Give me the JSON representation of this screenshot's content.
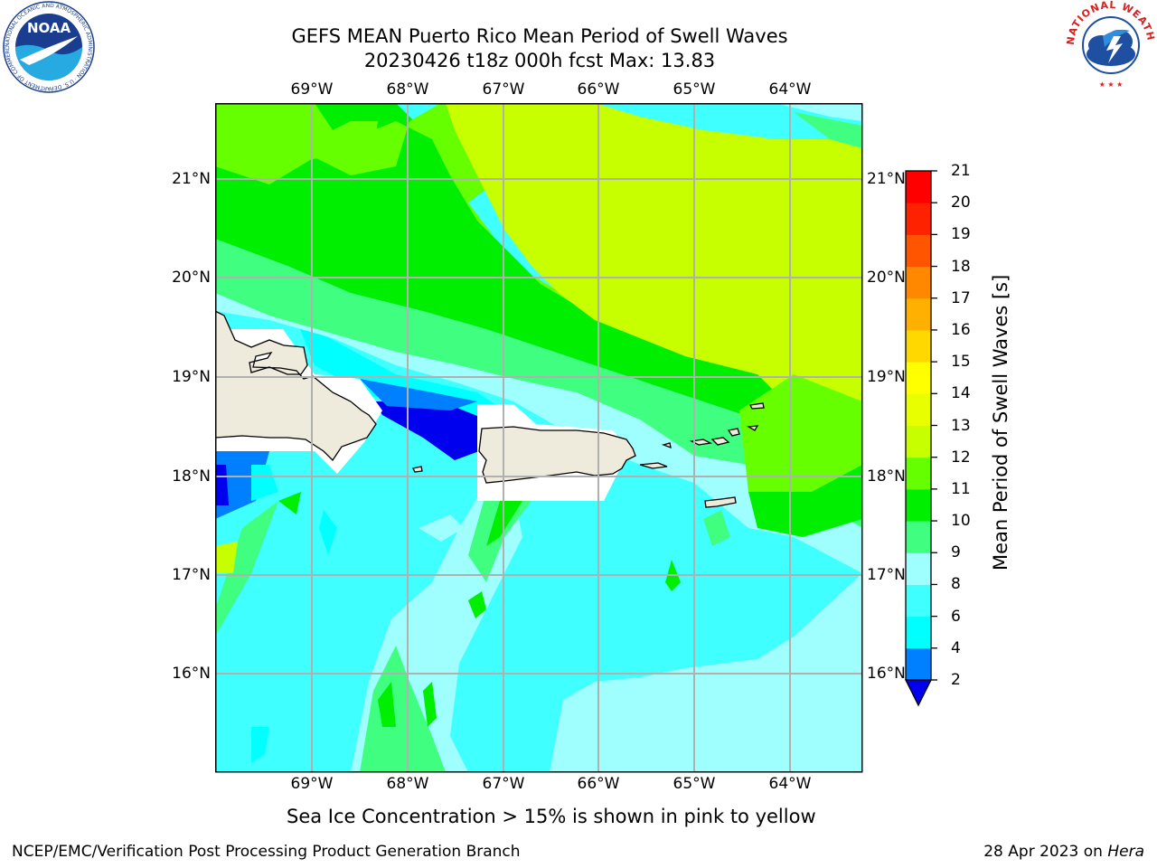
{
  "header": {
    "title_line1": "GEFS MEAN Puerto Rico Mean Period of Swell Waves",
    "title_line2": "20230426 t18z 000h fcst   Max: 13.83"
  },
  "logos": {
    "noaa_text": "NOAA",
    "noaa_ring": "NATIONAL OCEANIC AND ATMOSPHERIC ADMINISTRATION · U.S. DEPARTMENT OF COMMERCE",
    "nws_ring": "NATIONAL WEATHER SERVICE"
  },
  "map": {
    "lon_labels": [
      "69°W",
      "68°W",
      "67°W",
      "66°W",
      "65°W",
      "64°W"
    ],
    "lat_labels": [
      "21°N",
      "20°N",
      "19°N",
      "18°N",
      "17°N",
      "16°N"
    ],
    "land_color": "#eeeadc",
    "grid_color": "#b0b0b0"
  },
  "colorbar": {
    "title": "Mean Period of Swell Waves [s]",
    "levels": [
      "2",
      "4",
      "6",
      "8",
      "9",
      "10",
      "11",
      "12",
      "13",
      "14",
      "15",
      "16",
      "17",
      "18",
      "19",
      "20",
      "21"
    ],
    "colors": [
      "#0000ee",
      "#0080ff",
      "#00ffff",
      "#40ffff",
      "#9fffff",
      "#40ff80",
      "#00ee00",
      "#66ff00",
      "#c8ff00",
      "#e8ff00",
      "#ffff00",
      "#ffd800",
      "#ffb000",
      "#ff8800",
      "#ff5500",
      "#ff2200",
      "#ff0000"
    ]
  },
  "notes": {
    "ice": "Sea Ice Concentration > 15% is shown in pink to yellow"
  },
  "footer": {
    "left": "NCEP/EMC/Verification Post Processing Product Generation Branch",
    "date": "28 Apr 2023 on",
    "machine": "Hera"
  }
}
